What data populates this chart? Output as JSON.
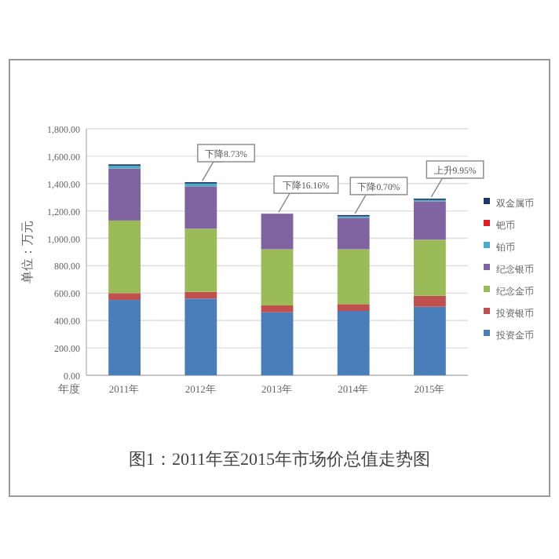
{
  "chart_data": {
    "type": "bar",
    "stacked": true,
    "title": "图1：2011年至2015年市场价总值走势图",
    "xlabel": "年度",
    "ylabel": "单位：万元",
    "categories": [
      "2011年",
      "2012年",
      "2013年",
      "2014年",
      "2015年"
    ],
    "series": [
      {
        "name": "投资金币",
        "color": "#4a7ebb",
        "values": [
          550,
          560,
          460,
          470,
          500
        ]
      },
      {
        "name": "投资银币",
        "color": "#c0504d",
        "values": [
          50,
          50,
          50,
          50,
          80
        ]
      },
      {
        "name": "纪念金币",
        "color": "#9bbb59",
        "values": [
          530,
          460,
          410,
          400,
          410
        ]
      },
      {
        "name": "纪念银币",
        "color": "#8064a2",
        "values": [
          380,
          310,
          260,
          230,
          280
        ]
      },
      {
        "name": "铂币",
        "color": "#4bacc6",
        "values": [
          20,
          20,
          0,
          10,
          10
        ]
      },
      {
        "name": "钯币",
        "color": "#e02020",
        "values": [
          0,
          0,
          0,
          0,
          0
        ]
      },
      {
        "name": "双金属币",
        "color": "#1f3864",
        "values": [
          10,
          10,
          0,
          10,
          10
        ]
      }
    ],
    "ylim": [
      0,
      1800
    ],
    "yticks": [
      {
        "value": 0,
        "label": "0.00"
      },
      {
        "value": 200,
        "label": "200.00"
      },
      {
        "value": 400,
        "label": "400.00"
      },
      {
        "value": 600,
        "label": "600.00"
      },
      {
        "value": 800,
        "label": "800.00"
      },
      {
        "value": 1000,
        "label": "1,000.00"
      },
      {
        "value": 1200,
        "label": "1,200.00"
      },
      {
        "value": 1400,
        "label": "1,400.00"
      },
      {
        "value": 1600,
        "label": "1,600.00"
      },
      {
        "value": 1800,
        "label": "1,800.00"
      }
    ],
    "grid": "y",
    "legend": "right",
    "annotations": [
      {
        "text": "下降8.73%",
        "x": "2012年",
        "y": 1410
      },
      {
        "text": "下降16.16%",
        "x": "2013年",
        "y": 1180
      },
      {
        "text": "下降0.70%",
        "x": "2014年",
        "y": 1170
      },
      {
        "text": "上升9.95%",
        "x": "2015年",
        "y": 1290
      }
    ]
  }
}
